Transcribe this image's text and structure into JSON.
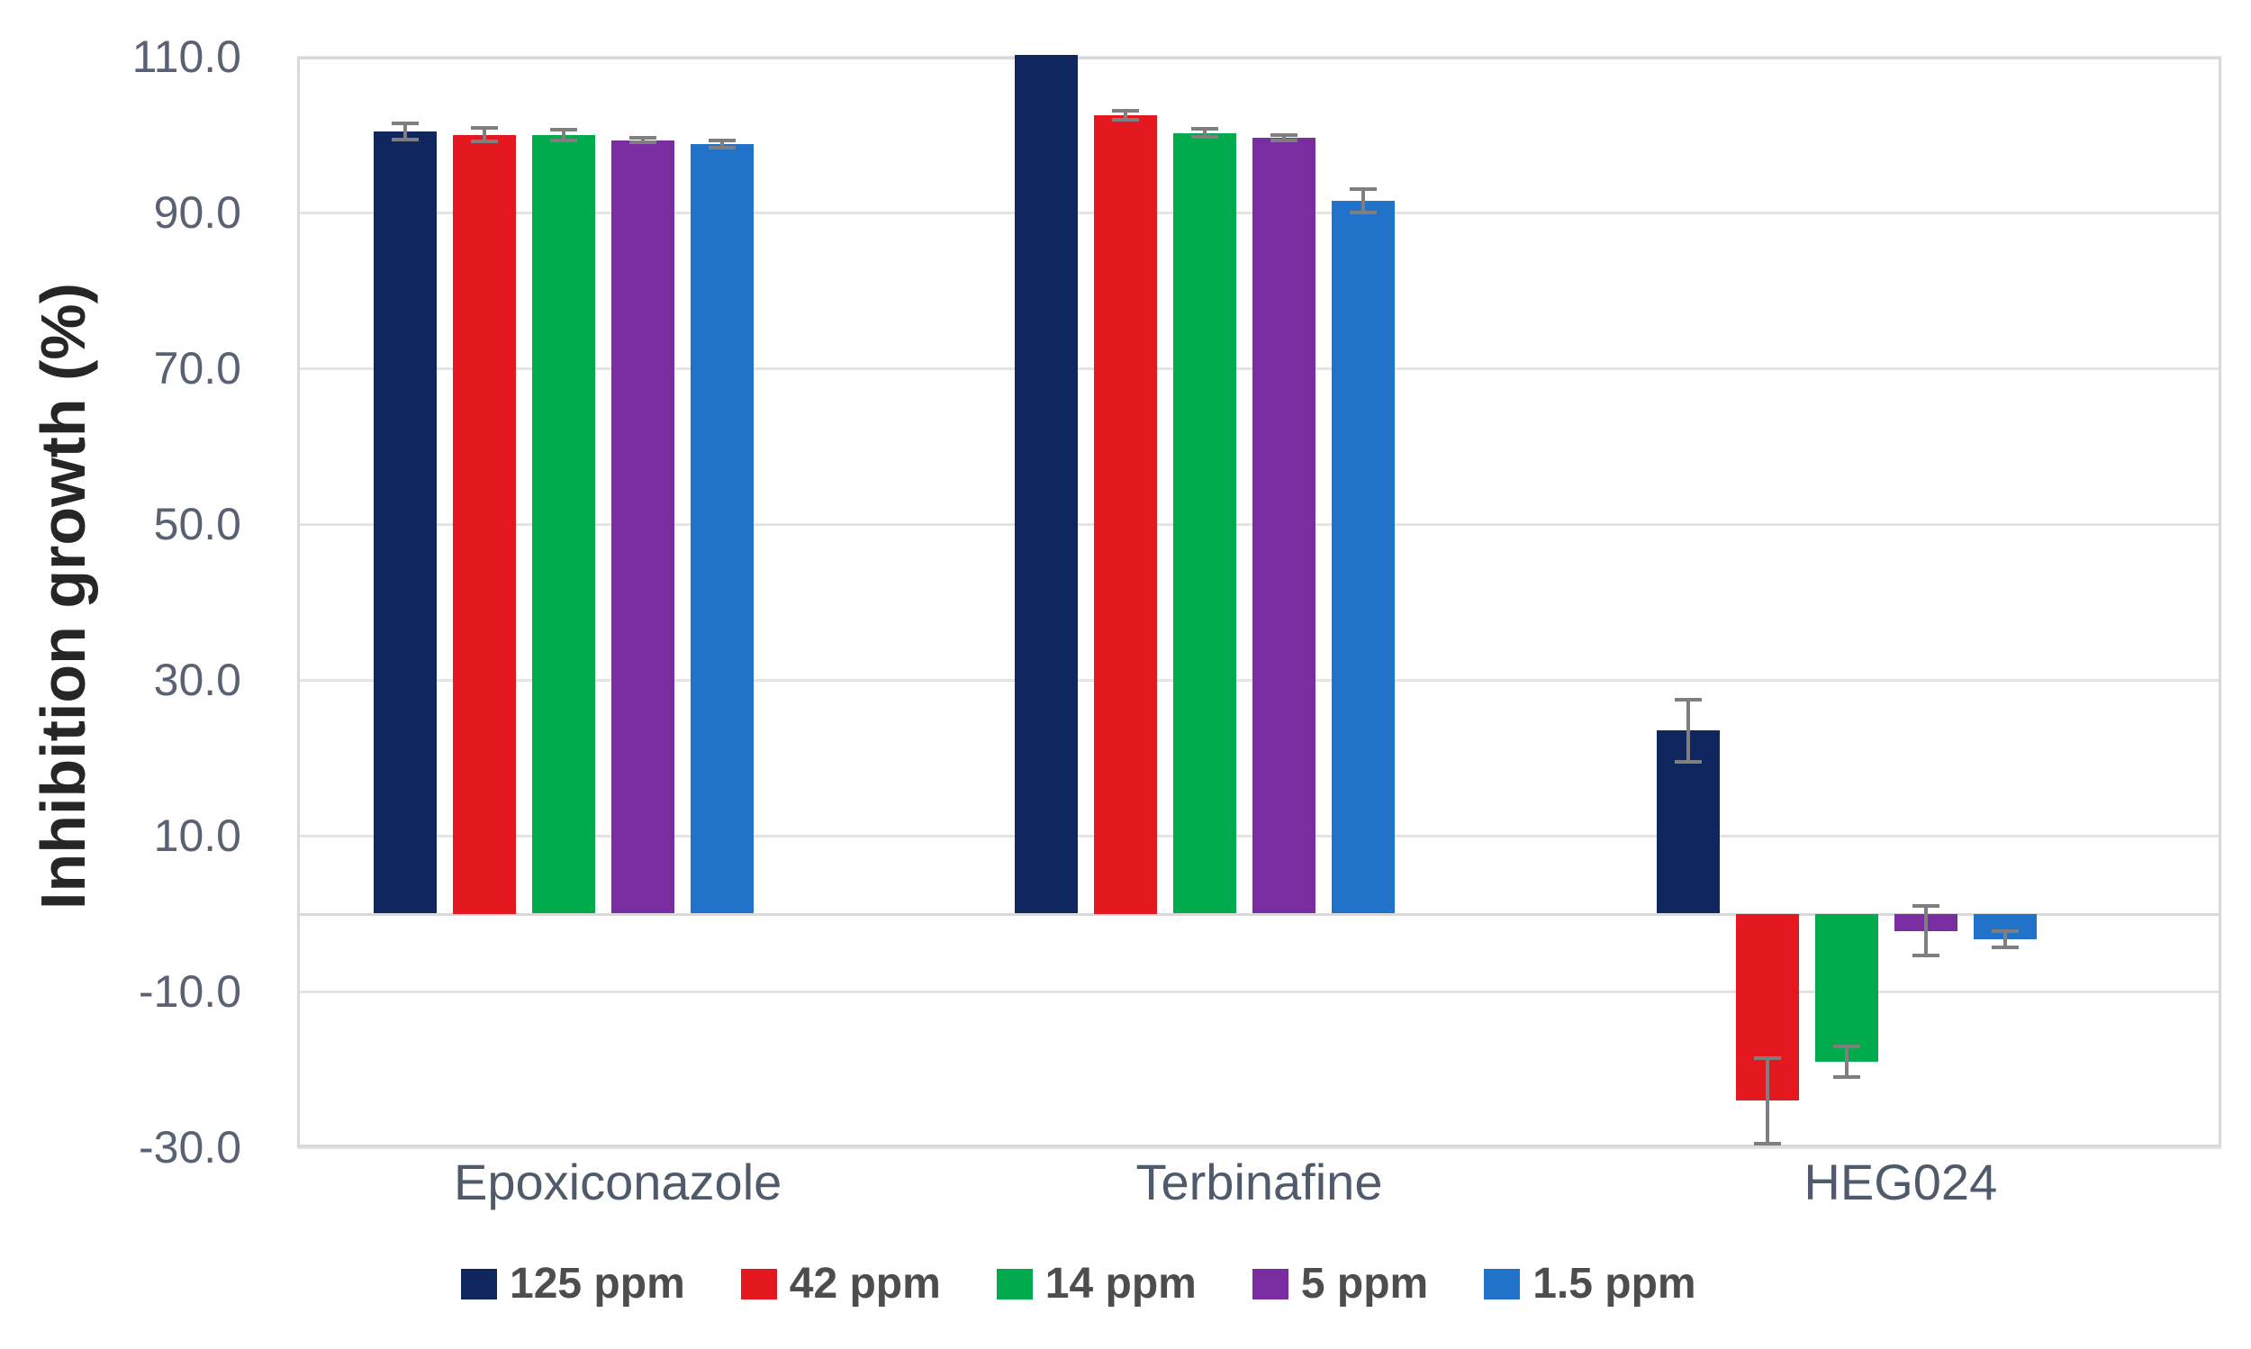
{
  "chart_data": {
    "type": "bar",
    "title": "",
    "ylabel": "Inhibition growth (%)",
    "xlabel": "",
    "categories": [
      "Epoxiconazole",
      "Terbinafine",
      "HEG024"
    ],
    "series": [
      {
        "name": "125 ppm",
        "color": "#10265e",
        "values": [
          100.4,
          110.2,
          23.5
        ],
        "errors": [
          1.0,
          0,
          4.0
        ]
      },
      {
        "name": "42 ppm",
        "color": "#e3191f",
        "values": [
          100.0,
          102.5,
          -24.0
        ],
        "errors": [
          0.9,
          0.6,
          5.5
        ]
      },
      {
        "name": "14 ppm",
        "color": "#00ab4d",
        "values": [
          99.9,
          100.2,
          -19.0
        ],
        "errors": [
          0.7,
          0.5,
          2.0
        ]
      },
      {
        "name": "5 ppm",
        "color": "#7a2da1",
        "values": [
          99.3,
          99.6,
          -2.2
        ],
        "errors": [
          0.3,
          0.4,
          3.2
        ]
      },
      {
        "name": "1.5 ppm",
        "color": "#2173c9",
        "values": [
          98.8,
          91.5,
          -3.3
        ],
        "errors": [
          0.5,
          1.5,
          1.0
        ]
      }
    ],
    "y_ticks": [
      "110.0",
      "90.0",
      "70.0",
      "50.0",
      "30.0",
      "10.0",
      "-10.0",
      "-30.0"
    ],
    "ylim": [
      -30,
      110
    ],
    "grid": true,
    "legend_position": "bottom",
    "error_bar_color": "#7f7f7f"
  }
}
